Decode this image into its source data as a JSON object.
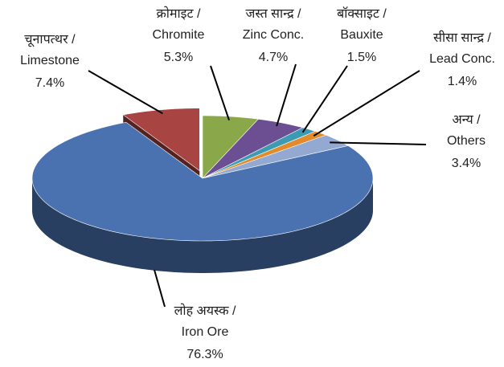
{
  "chart_data": {
    "type": "pie",
    "categories": [
      [
        "चूनापत्थर /",
        "Limestone"
      ],
      [
        "क्रोमाइट /",
        "Chromite"
      ],
      [
        "जस्त सान्द्र /",
        "Zinc Conc."
      ],
      [
        "बॉक्साइट /",
        "Bauxite"
      ],
      [
        "सीसा सान्द्र /",
        "Lead Conc."
      ],
      [
        "अन्य /",
        "Others"
      ],
      [
        "लोह अयस्क /",
        "Iron Ore"
      ]
    ],
    "values": [
      7.4,
      5.3,
      4.7,
      1.5,
      1.4,
      3.4,
      76.3
    ],
    "value_labels": [
      "7.4%",
      "5.3%",
      "4.7%",
      "1.5%",
      "1.4%",
      "3.4%",
      "76.3%"
    ],
    "colors": [
      "#a84442",
      "#8aa84a",
      "#6c4e92",
      "#3a9bb3",
      "#e38a2b",
      "#93a9d1",
      "#4a72b0"
    ]
  }
}
